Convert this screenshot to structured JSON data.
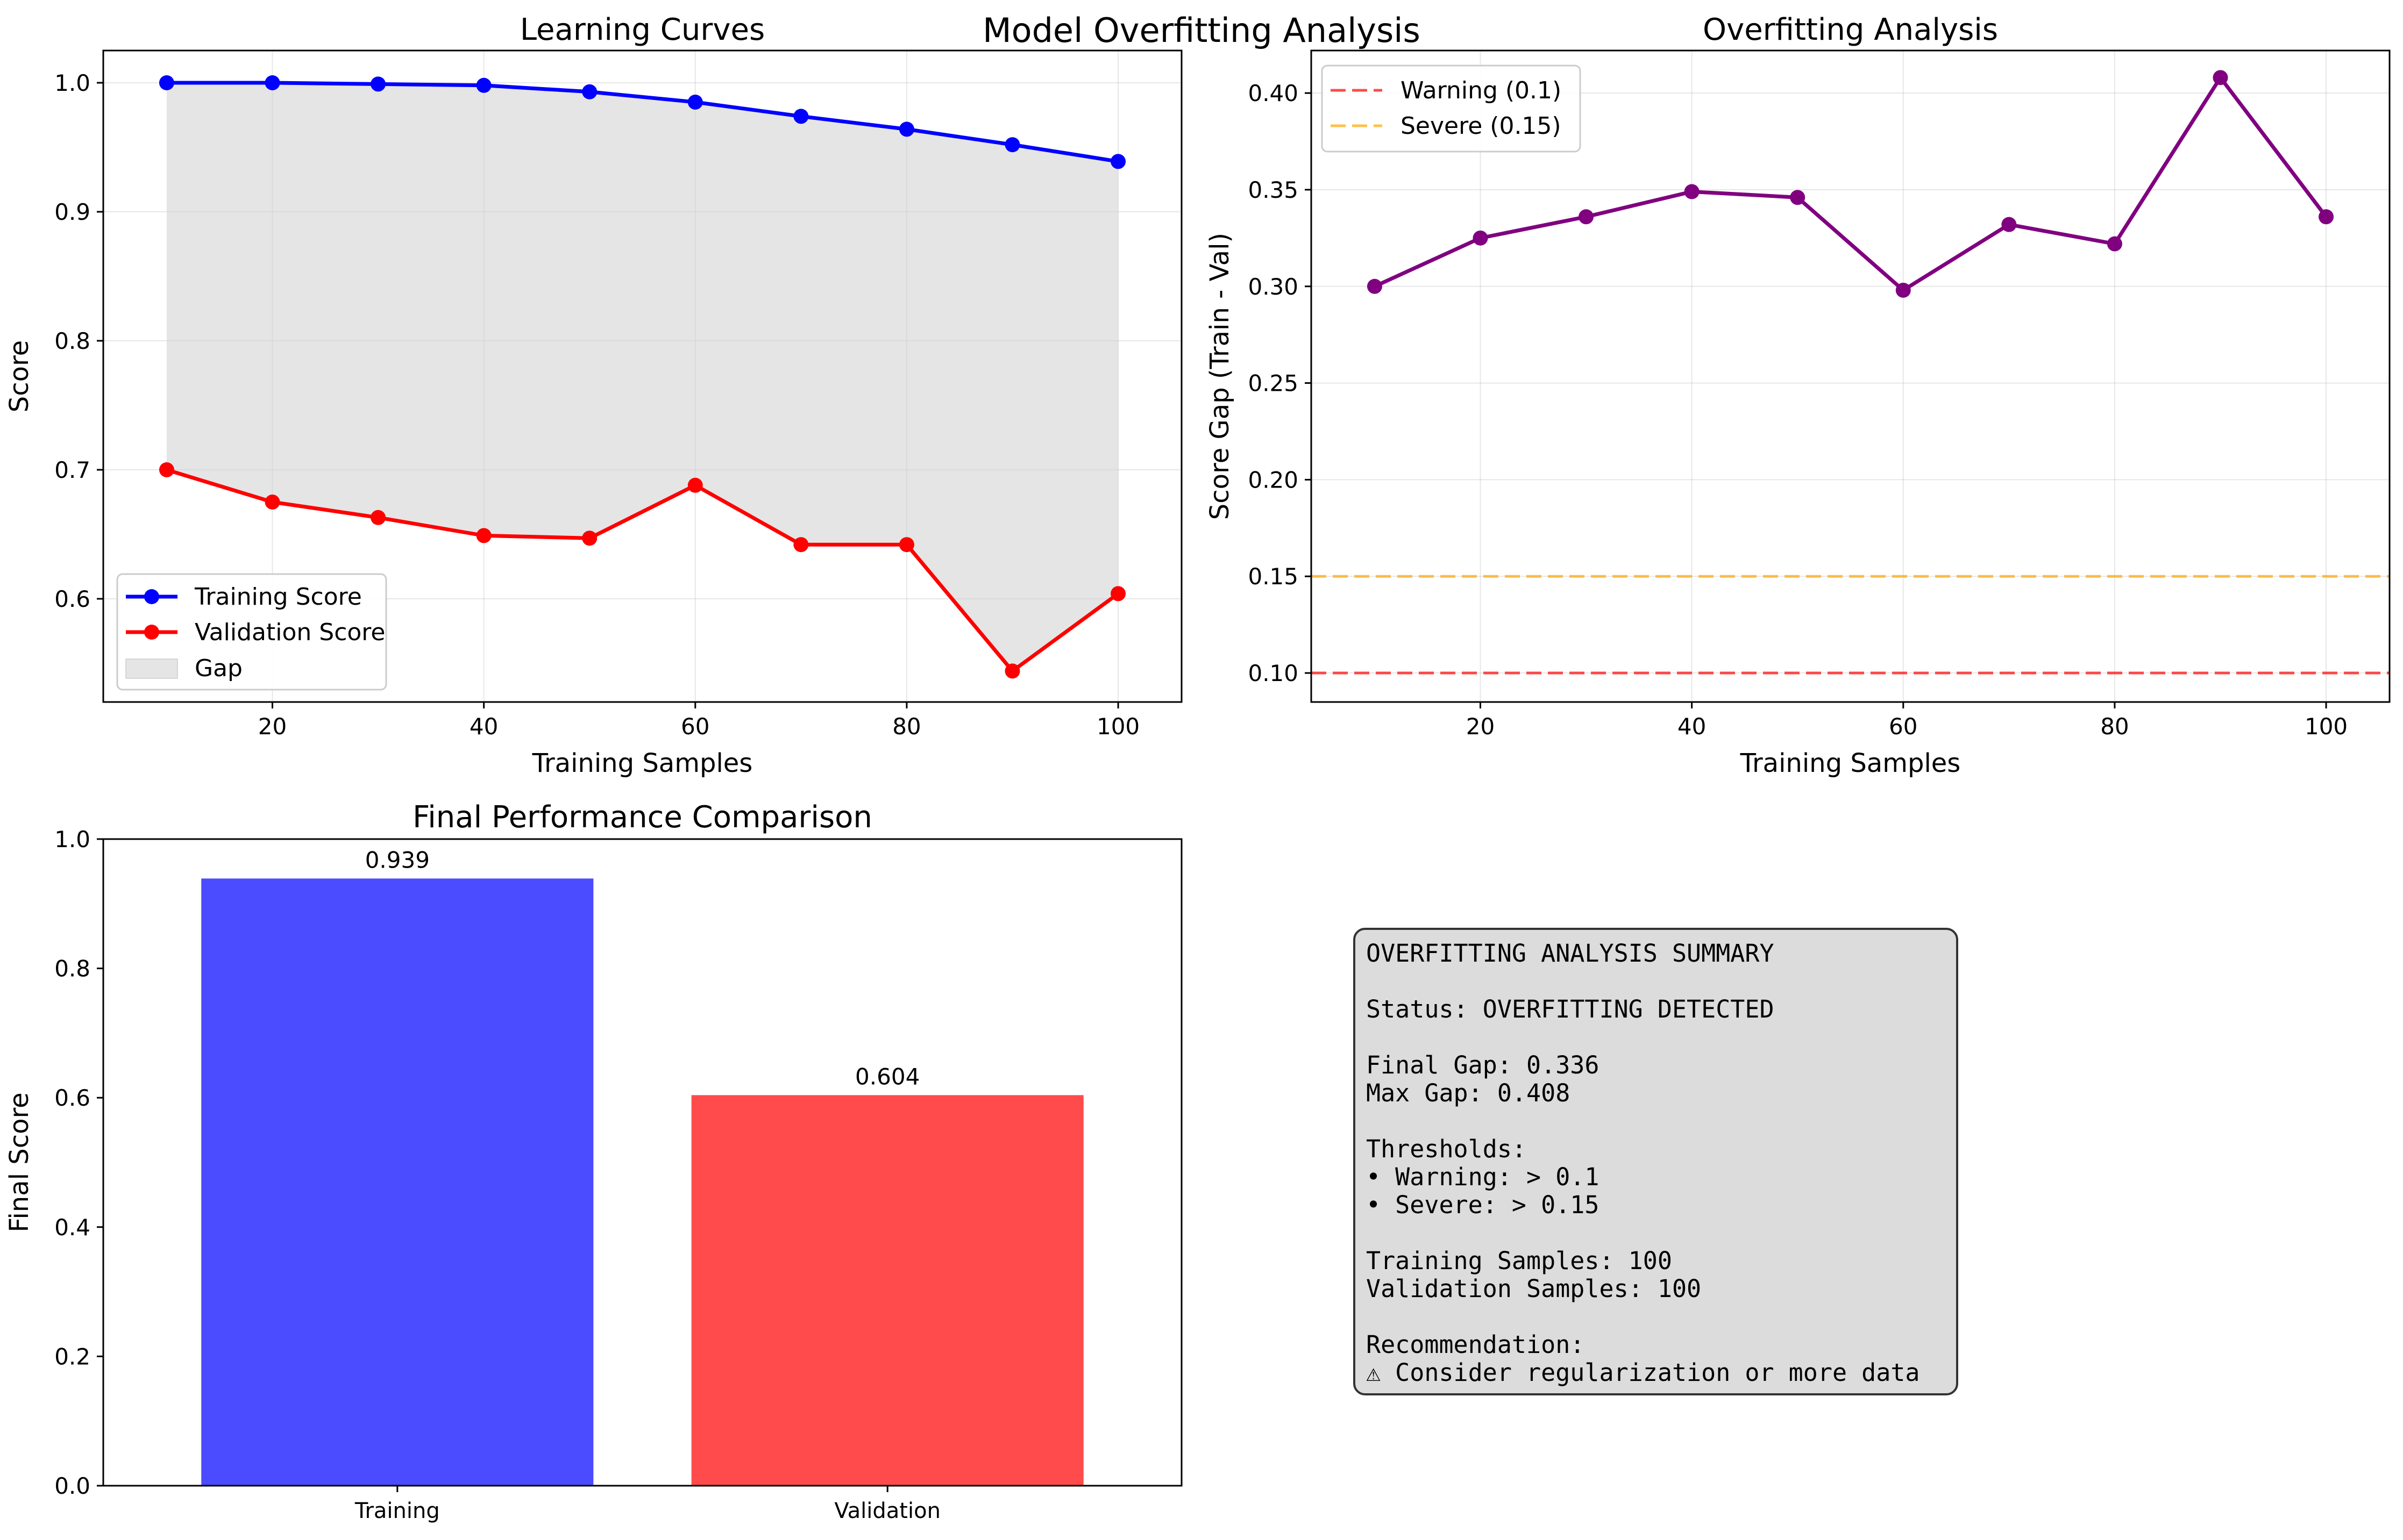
{
  "figure": {
    "title": "Model Overfitting Analysis"
  },
  "chart_data": [
    {
      "id": "learning-curves",
      "type": "line",
      "title": "Learning Curves",
      "xlabel": "Training Samples",
      "ylabel": "Score",
      "xlim": [
        4,
        106
      ],
      "ylim": [
        0.52,
        1.025
      ],
      "xticks": [
        20,
        40,
        60,
        80,
        100
      ],
      "yticks": [
        0.6,
        0.7,
        0.8,
        0.9,
        1.0
      ],
      "grid": true,
      "legend_position": "lower-left",
      "x": [
        10,
        20,
        30,
        40,
        50,
        60,
        70,
        80,
        90,
        100
      ],
      "series": [
        {
          "name": "Training Score",
          "color": "#0000ff",
          "values": [
            1.0,
            1.0,
            0.999,
            0.998,
            0.993,
            0.985,
            0.974,
            0.964,
            0.952,
            0.939
          ]
        },
        {
          "name": "Validation Score",
          "color": "#ff0000",
          "values": [
            0.7,
            0.675,
            0.663,
            0.649,
            0.647,
            0.688,
            0.642,
            0.642,
            0.544,
            0.604
          ]
        }
      ],
      "fill": {
        "name": "Gap",
        "color": "#d3d3d3"
      }
    },
    {
      "id": "overfitting-analysis",
      "type": "line",
      "title": "Overfitting Analysis",
      "xlabel": "Training Samples",
      "ylabel": "Score Gap (Train - Val)",
      "xlim": [
        4,
        106
      ],
      "ylim": [
        0.085,
        0.422
      ],
      "xticks": [
        20,
        40,
        60,
        80,
        100
      ],
      "yticks": [
        0.1,
        0.15,
        0.2,
        0.25,
        0.3,
        0.35,
        0.4
      ],
      "grid": true,
      "legend_position": "upper-left",
      "x": [
        10,
        20,
        30,
        40,
        50,
        60,
        70,
        80,
        90,
        100
      ],
      "series": [
        {
          "name": "",
          "color": "#800080",
          "values": [
            0.3,
            0.325,
            0.336,
            0.349,
            0.346,
            0.298,
            0.332,
            0.322,
            0.408,
            0.336
          ]
        }
      ],
      "thresholds": [
        {
          "name": "Warning (0.1)",
          "value": 0.1,
          "color": "#ff0000"
        },
        {
          "name": "Severe (0.15)",
          "value": 0.15,
          "color": "#ffa500"
        }
      ]
    },
    {
      "id": "final-performance",
      "type": "bar",
      "title": "Final Performance Comparison",
      "xlabel": "",
      "ylabel": "Final Score",
      "ylim": [
        0,
        1.0
      ],
      "yticks": [
        0.0,
        0.2,
        0.4,
        0.6,
        0.8,
        1.0
      ],
      "grid": false,
      "categories": [
        "Training",
        "Validation"
      ],
      "values": [
        0.939,
        0.604
      ],
      "value_labels": [
        "0.939",
        "0.604"
      ],
      "colors": [
        "#4b4bff",
        "#ff4b4b"
      ]
    }
  ],
  "summary": {
    "lines": [
      "OVERFITTING ANALYSIS SUMMARY",
      "",
      "Status: OVERFITTING DETECTED",
      "",
      "Final Gap: 0.336",
      "Max Gap: 0.408",
      "",
      "Thresholds:",
      "• Warning: > 0.1",
      "• Severe: > 0.15",
      "",
      "Training Samples: 100",
      "Validation Samples: 100",
      "",
      "Recommendation:"
    ],
    "recommendation_icon": "warning-icon",
    "recommendation_glyph": "⚠",
    "recommendation_text": "Consider regularization or more data"
  }
}
